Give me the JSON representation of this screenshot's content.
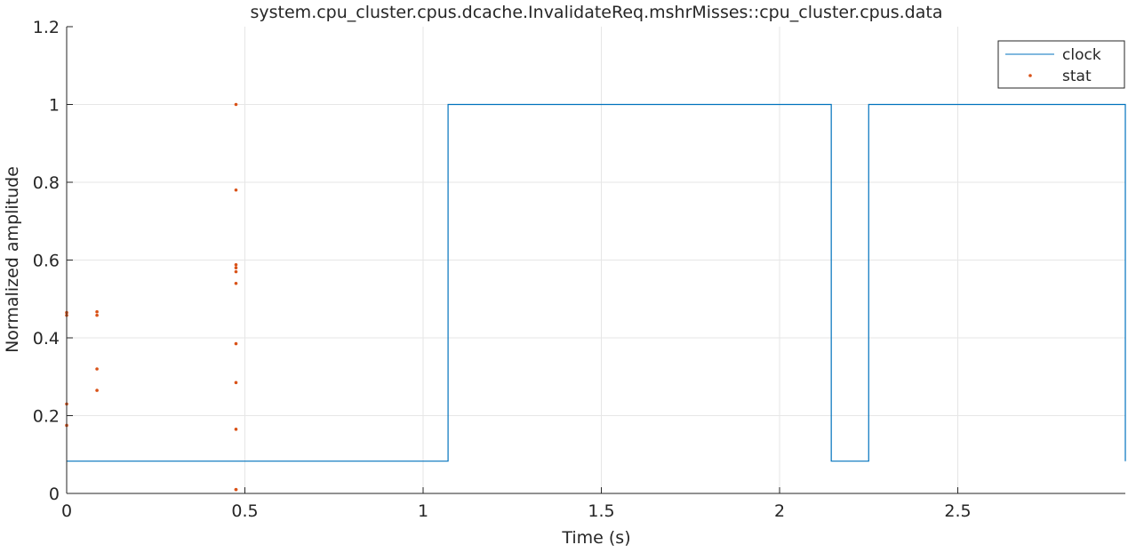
{
  "chart_data": {
    "type": "line",
    "title": "system.cpu_cluster.cpus.dcache.InvalidateReq.mshrMisses::cpu_cluster.cpus.data",
    "xlabel": "Time (s)",
    "ylabel": "Normalized amplitude",
    "xlim": [
      0,
      2.97
    ],
    "ylim": [
      0,
      1.2
    ],
    "x_ticks": [
      0,
      0.5,
      1,
      1.5,
      2,
      2.5
    ],
    "x_tick_labels": [
      "0",
      "0.5",
      "1",
      "1.5",
      "2",
      "2.5"
    ],
    "y_ticks": [
      0,
      0.2,
      0.4,
      0.6,
      0.8,
      1.0,
      1.2
    ],
    "y_tick_labels": [
      "0",
      "0.2",
      "0.4",
      "0.6",
      "0.8",
      "1",
      "1.2"
    ],
    "grid": true,
    "legend_position": "top-right",
    "series": [
      {
        "name": "clock",
        "style": "line",
        "color": "#0072bd",
        "x": [
          0,
          1.07,
          1.07,
          2.145,
          2.145,
          2.25,
          2.25,
          2.97,
          2.97
        ],
        "y": [
          0.083,
          0.083,
          1.0,
          1.0,
          0.083,
          0.083,
          1.0,
          1.0,
          0.083
        ]
      },
      {
        "name": "stat",
        "style": "markers",
        "color": "#d95319",
        "x": [
          0.0,
          0.0,
          0.0,
          0.0,
          0.085,
          0.085,
          0.085,
          0.085,
          0.475,
          0.475,
          0.475,
          0.475,
          0.475,
          0.475,
          0.475,
          0.475,
          0.475,
          0.475,
          0.475
        ],
        "y": [
          0.465,
          0.458,
          0.23,
          0.175,
          0.467,
          0.458,
          0.32,
          0.265,
          1.0,
          0.78,
          0.588,
          0.58,
          0.57,
          0.54,
          0.385,
          0.285,
          0.165,
          0.01,
          0.01
        ]
      }
    ]
  }
}
